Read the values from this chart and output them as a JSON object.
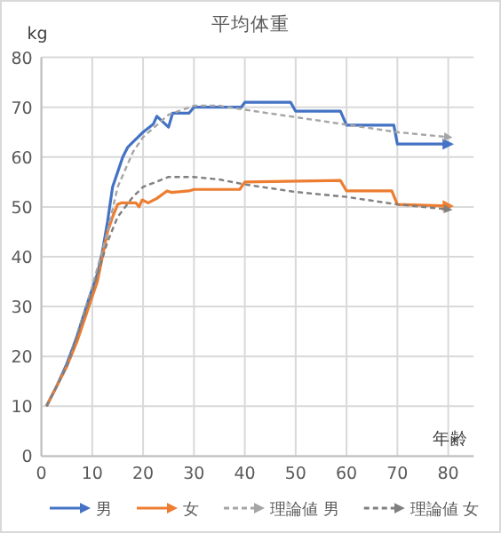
{
  "chart_data": {
    "type": "line",
    "title": "平均体重",
    "xlabel": "年齢",
    "ylabel": "kg",
    "xlim": [
      0,
      85
    ],
    "ylim": [
      0,
      80
    ],
    "xticks": [
      0,
      10,
      20,
      30,
      40,
      50,
      60,
      70,
      80
    ],
    "yticks": [
      0,
      10,
      20,
      30,
      40,
      50,
      60,
      70,
      80
    ],
    "grid": true,
    "legend": "bottom",
    "series": [
      {
        "name": "男",
        "color": "#4472c4",
        "line_style": "solid",
        "x": [
          1,
          3,
          5,
          7,
          9,
          11,
          12,
          13,
          14,
          15,
          16,
          17,
          18,
          19,
          20,
          22,
          22.7,
          25,
          25.8,
          29,
          30,
          39.3,
          40,
          49,
          50,
          58.8,
          60,
          69.3,
          70,
          80
        ],
        "values": [
          10,
          14,
          18.5,
          24,
          30.5,
          36.5,
          41,
          47,
          54,
          57,
          60,
          62,
          63,
          64,
          65,
          66.6,
          68.2,
          66,
          68.8,
          68.8,
          70,
          70,
          71,
          71,
          69.2,
          69.2,
          66.4,
          66.4,
          62.6,
          62.6
        ]
      },
      {
        "name": "女",
        "color": "#ed7d31",
        "line_style": "solid",
        "x": [
          1,
          3,
          5,
          7,
          9,
          11,
          12,
          13,
          14,
          15,
          15.7,
          18.6,
          19.2,
          19.8,
          21,
          22.7,
          24.7,
          25.6,
          29,
          30,
          39,
          40,
          58.8,
          60,
          68.9,
          70,
          80
        ],
        "values": [
          10,
          14,
          18,
          23,
          29,
          35,
          40,
          45,
          48,
          50.5,
          50.8,
          50.8,
          50,
          51.4,
          50.8,
          51.7,
          53.2,
          52.9,
          53.2,
          53.5,
          53.5,
          55,
          55.3,
          53.2,
          53.2,
          50.5,
          50.2
        ]
      },
      {
        "name": "理論値 男",
        "color": "#a5a5a5",
        "line_style": "dashed",
        "x": [
          1,
          5,
          10,
          13,
          15,
          18,
          20,
          25,
          30,
          35,
          40,
          50,
          60,
          70,
          80
        ],
        "values": [
          10,
          18,
          34,
          45,
          54,
          61,
          64,
          68.5,
          70.3,
          70.3,
          69.5,
          68,
          66.5,
          65,
          64
        ]
      },
      {
        "name": "理論値 女",
        "color": "#7f7f7f",
        "line_style": "dashed",
        "x": [
          1,
          5,
          10,
          13,
          15,
          18,
          20,
          25,
          30,
          35,
          40,
          50,
          60,
          70,
          80
        ],
        "values": [
          10,
          18,
          33,
          43,
          48,
          52,
          54,
          56,
          56,
          55.5,
          54.5,
          53,
          52,
          50.5,
          49.5
        ]
      }
    ]
  }
}
